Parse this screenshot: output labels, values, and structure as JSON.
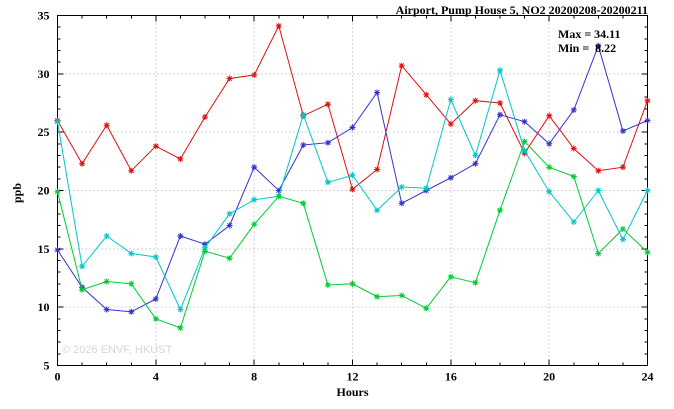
{
  "chart_data": {
    "type": "line",
    "title": "Airport, Pump House 5, NO2 20200208-20200211",
    "xlabel": "Hours",
    "ylabel": "ppb",
    "xlim": [
      0,
      24
    ],
    "ylim": [
      5,
      35
    ],
    "x_ticks": [
      0,
      4,
      8,
      12,
      16,
      20,
      24
    ],
    "y_ticks": [
      5,
      10,
      15,
      20,
      25,
      30,
      35
    ],
    "x_minor_step": 1,
    "y_minor_step": 1,
    "grid": true,
    "legend_position": "none",
    "annotations": {
      "max_label": "Max = 34.11",
      "min_label": "Min =  8.22"
    },
    "watermark": "© 2026 ENVF, HKUST",
    "x": [
      0,
      1,
      2,
      3,
      4,
      5,
      6,
      7,
      8,
      9,
      10,
      11,
      12,
      13,
      14,
      15,
      16,
      17,
      18,
      19,
      20,
      21,
      22,
      23,
      24
    ],
    "series": [
      {
        "name": "red",
        "color": "#e01010",
        "values": [
          26.0,
          22.3,
          25.6,
          21.7,
          23.8,
          22.7,
          26.3,
          29.6,
          29.9,
          34.11,
          26.4,
          27.4,
          20.1,
          21.8,
          30.7,
          28.2,
          25.7,
          27.7,
          27.5,
          23.2,
          26.4,
          23.6,
          21.7,
          22.0,
          27.7
        ]
      },
      {
        "name": "blue",
        "color": "#3333cc",
        "values": [
          14.9,
          11.7,
          9.8,
          9.6,
          10.7,
          16.1,
          15.4,
          17.0,
          22.0,
          20.0,
          23.9,
          24.1,
          25.4,
          28.4,
          18.9,
          20.0,
          21.1,
          22.3,
          26.5,
          25.9,
          24.0,
          26.9,
          32.4,
          25.1,
          26.0
        ]
      },
      {
        "name": "cyan",
        "color": "#00c8c8",
        "values": [
          25.9,
          13.5,
          16.1,
          14.6,
          14.3,
          9.8,
          15.1,
          18.0,
          19.2,
          19.5,
          26.5,
          20.7,
          21.3,
          18.3,
          20.3,
          20.2,
          27.8,
          23.0,
          30.3,
          23.4,
          19.9,
          17.3,
          20.0,
          15.8,
          20.0
        ]
      },
      {
        "name": "green",
        "color": "#00cc33",
        "values": [
          19.9,
          11.5,
          12.2,
          12.0,
          9.0,
          8.22,
          14.8,
          14.2,
          17.1,
          19.5,
          18.9,
          11.9,
          12.0,
          10.9,
          11.0,
          9.9,
          12.6,
          12.1,
          18.3,
          24.2,
          22.0,
          21.2,
          14.6,
          16.7,
          14.7
        ]
      }
    ]
  }
}
